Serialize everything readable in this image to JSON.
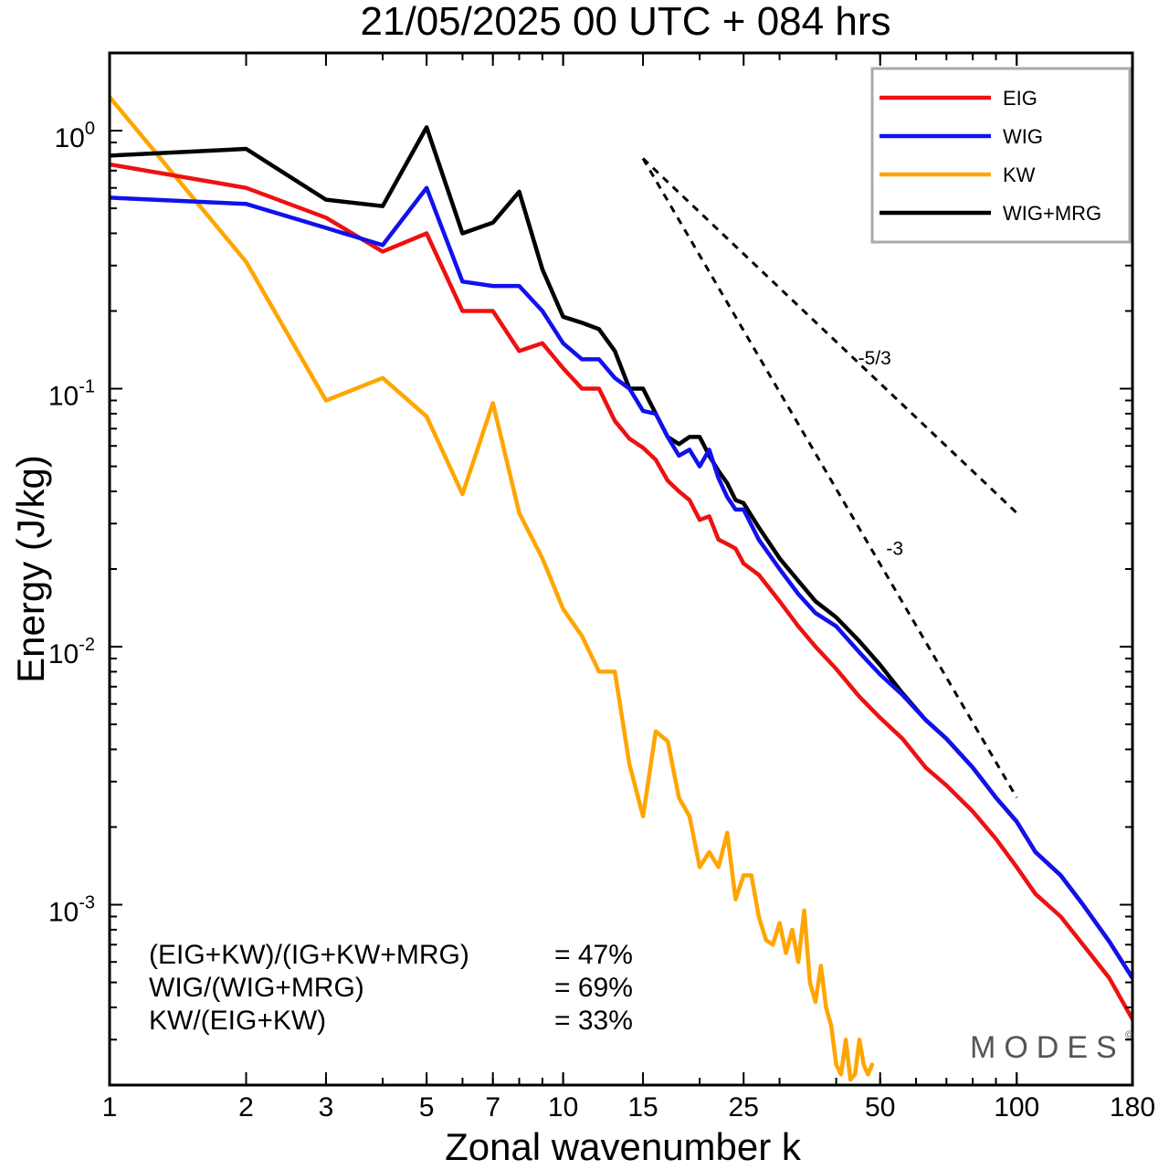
{
  "title": "21/05/2025  00 UTC  + 084 hrs",
  "chart_data": {
    "type": "line",
    "xscale": "log",
    "yscale": "log",
    "xlabel": "Zonal wavenumber k",
    "ylabel": "Energy (J/kg)",
    "xlim": [
      1,
      180
    ],
    "ylim": [
      0.0002,
      2.0
    ],
    "x_ticks": [
      1,
      2,
      3,
      5,
      7,
      10,
      15,
      25,
      50,
      100,
      180
    ],
    "y_ticks": [
      {
        "value": 1.0,
        "base": "10",
        "exponent": "0"
      },
      {
        "value": 0.1,
        "base": "10",
        "exponent": "-1"
      },
      {
        "value": 0.01,
        "base": "10",
        "exponent": "-2"
      },
      {
        "value": 0.001,
        "base": "10",
        "exponent": "-3"
      }
    ],
    "grid": false,
    "legend_position": "top-right",
    "series": [
      {
        "name": "EIG",
        "color": "#ee1111",
        "points": [
          [
            1,
            0.74
          ],
          [
            2,
            0.6
          ],
          [
            3,
            0.46
          ],
          [
            4,
            0.34
          ],
          [
            5,
            0.4
          ],
          [
            6,
            0.2
          ],
          [
            7,
            0.2
          ],
          [
            8,
            0.14
          ],
          [
            9,
            0.15
          ],
          [
            10,
            0.12
          ],
          [
            11,
            0.1
          ],
          [
            12,
            0.1
          ],
          [
            13,
            0.075
          ],
          [
            14,
            0.064
          ],
          [
            15,
            0.059
          ],
          [
            16,
            0.053
          ],
          [
            17,
            0.044
          ],
          [
            18,
            0.04
          ],
          [
            19,
            0.037
          ],
          [
            20,
            0.031
          ],
          [
            21,
            0.032
          ],
          [
            22,
            0.026
          ],
          [
            23,
            0.025
          ],
          [
            24,
            0.024
          ],
          [
            25,
            0.021
          ],
          [
            27,
            0.019
          ],
          [
            30,
            0.015
          ],
          [
            33,
            0.012
          ],
          [
            36,
            0.01
          ],
          [
            40,
            0.0082
          ],
          [
            45,
            0.0064
          ],
          [
            50,
            0.0053
          ],
          [
            56,
            0.0044
          ],
          [
            63,
            0.0034
          ],
          [
            70,
            0.0029
          ],
          [
            80,
            0.0023
          ],
          [
            90,
            0.0018
          ],
          [
            100,
            0.0014
          ],
          [
            110,
            0.0011
          ],
          [
            125,
            0.0009
          ],
          [
            140,
            0.0007
          ],
          [
            160,
            0.00052
          ],
          [
            180,
            0.00036
          ]
        ]
      },
      {
        "name": "WIG",
        "color": "#1111ee",
        "points": [
          [
            1,
            0.55
          ],
          [
            2,
            0.52
          ],
          [
            3,
            0.42
          ],
          [
            4,
            0.36
          ],
          [
            5,
            0.6
          ],
          [
            6,
            0.26
          ],
          [
            7,
            0.25
          ],
          [
            8,
            0.25
          ],
          [
            9,
            0.2
          ],
          [
            10,
            0.15
          ],
          [
            11,
            0.13
          ],
          [
            12,
            0.13
          ],
          [
            13,
            0.11
          ],
          [
            14,
            0.1
          ],
          [
            15,
            0.082
          ],
          [
            16,
            0.08
          ],
          [
            17,
            0.065
          ],
          [
            18,
            0.055
          ],
          [
            19,
            0.058
          ],
          [
            20,
            0.05
          ],
          [
            21,
            0.058
          ],
          [
            22,
            0.045
          ],
          [
            23,
            0.038
          ],
          [
            24,
            0.034
          ],
          [
            25,
            0.034
          ],
          [
            27,
            0.026
          ],
          [
            30,
            0.02
          ],
          [
            33,
            0.016
          ],
          [
            36,
            0.0135
          ],
          [
            40,
            0.012
          ],
          [
            45,
            0.0095
          ],
          [
            50,
            0.0078
          ],
          [
            56,
            0.0065
          ],
          [
            63,
            0.0052
          ],
          [
            70,
            0.0044
          ],
          [
            80,
            0.0034
          ],
          [
            90,
            0.0026
          ],
          [
            100,
            0.0021
          ],
          [
            110,
            0.0016
          ],
          [
            125,
            0.0013
          ],
          [
            140,
            0.001
          ],
          [
            160,
            0.00072
          ],
          [
            180,
            0.00052
          ]
        ]
      },
      {
        "name": "KW",
        "color": "#ffa500",
        "points": [
          [
            1,
            1.35
          ],
          [
            2,
            0.31
          ],
          [
            3,
            0.09
          ],
          [
            4,
            0.11
          ],
          [
            5,
            0.078
          ],
          [
            6,
            0.039
          ],
          [
            7,
            0.088
          ],
          [
            8,
            0.033
          ],
          [
            9,
            0.022
          ],
          [
            10,
            0.014
          ],
          [
            11,
            0.011
          ],
          [
            12,
            0.008
          ],
          [
            13,
            0.008
          ],
          [
            14,
            0.0035
          ],
          [
            15,
            0.0022
          ],
          [
            16,
            0.0047
          ],
          [
            17,
            0.0043
          ],
          [
            18,
            0.0026
          ],
          [
            19,
            0.0022
          ],
          [
            20,
            0.0014
          ],
          [
            21,
            0.0016
          ],
          [
            22,
            0.0014
          ],
          [
            23,
            0.0019
          ],
          [
            24,
            0.00105
          ],
          [
            25,
            0.0013
          ],
          [
            26,
            0.0013
          ],
          [
            27,
            0.0009
          ],
          [
            28,
            0.00073
          ],
          [
            29,
            0.0007
          ],
          [
            30,
            0.00085
          ],
          [
            31,
            0.00065
          ],
          [
            32,
            0.0008
          ],
          [
            33,
            0.0006
          ],
          [
            34,
            0.00095
          ],
          [
            35,
            0.0005
          ],
          [
            36,
            0.00042
          ],
          [
            37,
            0.00058
          ],
          [
            38,
            0.0004
          ],
          [
            39,
            0.00034
          ],
          [
            40,
            0.00024
          ],
          [
            41,
            0.00022
          ],
          [
            42,
            0.0003
          ],
          [
            43,
            0.00021
          ],
          [
            44,
            0.00022
          ],
          [
            45,
            0.0003
          ],
          [
            46,
            0.00024
          ],
          [
            47,
            0.00022
          ],
          [
            48,
            0.00024
          ]
        ]
      },
      {
        "name": "WIG+MRG",
        "color": "#000000",
        "points": [
          [
            1,
            0.8
          ],
          [
            2,
            0.85
          ],
          [
            3,
            0.54
          ],
          [
            4,
            0.51
          ],
          [
            5,
            1.03
          ],
          [
            6,
            0.4
          ],
          [
            7,
            0.44
          ],
          [
            8,
            0.58
          ],
          [
            9,
            0.29
          ],
          [
            10,
            0.19
          ],
          [
            11,
            0.18
          ],
          [
            12,
            0.17
          ],
          [
            13,
            0.14
          ],
          [
            14,
            0.1
          ],
          [
            15,
            0.1
          ],
          [
            16,
            0.08
          ],
          [
            17,
            0.065
          ],
          [
            18,
            0.061
          ],
          [
            19,
            0.065
          ],
          [
            20,
            0.065
          ],
          [
            21,
            0.055
          ],
          [
            22,
            0.048
          ],
          [
            23,
            0.043
          ],
          [
            24,
            0.037
          ],
          [
            25,
            0.036
          ],
          [
            27,
            0.029
          ],
          [
            30,
            0.022
          ],
          [
            33,
            0.018
          ],
          [
            36,
            0.015
          ],
          [
            40,
            0.013
          ],
          [
            45,
            0.0105
          ],
          [
            50,
            0.0085
          ],
          [
            56,
            0.0066
          ],
          [
            63,
            0.0052
          ],
          [
            70,
            0.0044
          ],
          [
            80,
            0.0034
          ],
          [
            90,
            0.0026
          ],
          [
            100,
            0.0021
          ],
          [
            110,
            0.0016
          ],
          [
            125,
            0.0013
          ],
          [
            140,
            0.001
          ],
          [
            160,
            0.00072
          ],
          [
            180,
            0.00052
          ]
        ]
      }
    ],
    "reference_lines": [
      {
        "label": "-5/3",
        "k_start": 15,
        "energy_start": 0.78,
        "k_end": 100,
        "energy_end": 0.033
      },
      {
        "label": "-3",
        "k_start": 15,
        "energy_start": 0.78,
        "k_end": 100,
        "energy_end": 0.0026
      }
    ],
    "annotations": [
      {
        "label": "(EIG+KW)/(IG+KW+MRG)",
        "value": "= 47%"
      },
      {
        "label": "WIG/(WIG+MRG)",
        "value": "= 69%"
      },
      {
        "label": "KW/(EIG+KW)",
        "value": "= 33%"
      }
    ],
    "watermark": "MODES",
    "watermark_mark": "©"
  }
}
